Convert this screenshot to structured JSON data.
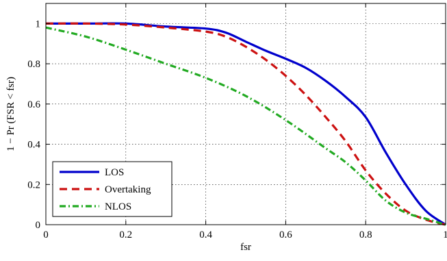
{
  "chart_data": {
    "type": "line",
    "title": "",
    "xlabel": "fsr",
    "ylabel": "1 − Pr (FSR < fsr)",
    "xlim": [
      0,
      1
    ],
    "ylim": [
      0,
      1.1
    ],
    "xticks": [
      0,
      0.2,
      0.4,
      0.6,
      0.8,
      1
    ],
    "xtick_labels": [
      "0",
      "0.2",
      "0.4",
      "0.6",
      "0.8",
      "1"
    ],
    "yticks": [
      0,
      0.2,
      0.4,
      0.6,
      0.8,
      1
    ],
    "ytick_labels": [
      "0",
      "0.2",
      "0.4",
      "0.6",
      "0.8",
      "1"
    ],
    "grid": true,
    "legend_position": "bottom-left",
    "series": [
      {
        "name": "LOS",
        "color": "#0000cc",
        "style": "solid",
        "x": [
          0,
          0.1,
          0.2,
          0.3,
          0.4,
          0.45,
          0.5,
          0.55,
          0.6,
          0.65,
          0.7,
          0.75,
          0.8,
          0.85,
          0.9,
          0.95,
          1.0
        ],
        "y": [
          1.0,
          1.0,
          1.0,
          0.985,
          0.975,
          0.955,
          0.91,
          0.865,
          0.825,
          0.78,
          0.715,
          0.635,
          0.535,
          0.36,
          0.2,
          0.07,
          0.0
        ]
      },
      {
        "name": "Overtaking",
        "color": "#cc1111",
        "style": "dashed",
        "x": [
          0,
          0.1,
          0.2,
          0.3,
          0.4,
          0.45,
          0.5,
          0.55,
          0.6,
          0.65,
          0.7,
          0.75,
          0.8,
          0.85,
          0.9,
          0.95,
          1.0
        ],
        "y": [
          1.0,
          1.0,
          0.995,
          0.98,
          0.96,
          0.935,
          0.885,
          0.82,
          0.74,
          0.645,
          0.535,
          0.415,
          0.27,
          0.155,
          0.07,
          0.025,
          0.0
        ]
      },
      {
        "name": "NLOS",
        "color": "#22aa22",
        "style": "dashdot",
        "x": [
          0,
          0.1,
          0.2,
          0.3,
          0.4,
          0.5,
          0.6,
          0.7,
          0.75,
          0.8,
          0.85,
          0.9,
          0.95,
          1.0
        ],
        "y": [
          0.98,
          0.935,
          0.87,
          0.8,
          0.73,
          0.64,
          0.52,
          0.38,
          0.31,
          0.22,
          0.12,
          0.06,
          0.03,
          0.0
        ]
      }
    ]
  }
}
